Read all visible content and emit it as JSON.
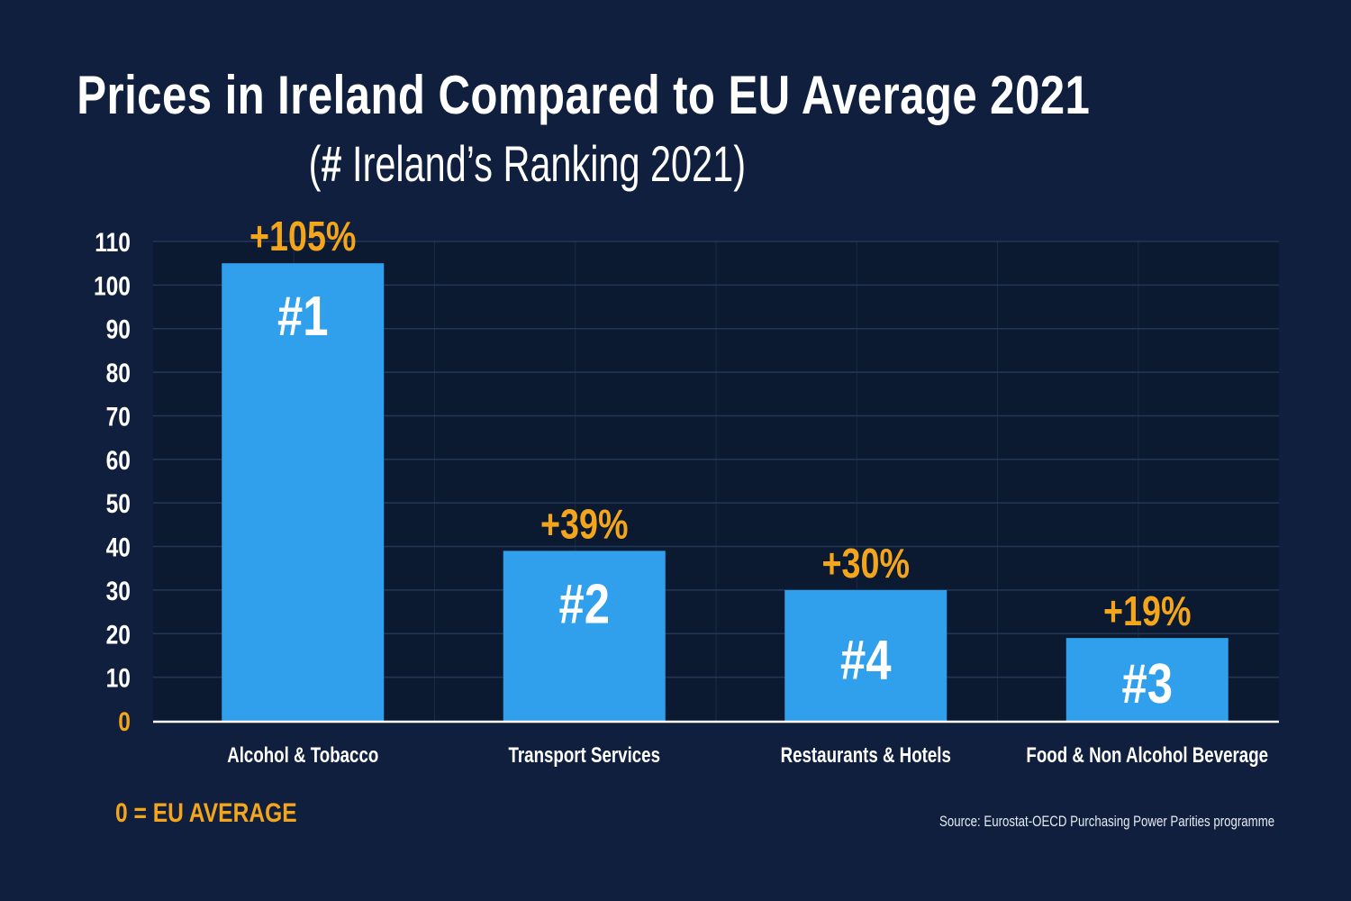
{
  "title": "Prices in Ireland Compared to EU Average 2021",
  "subtitle_open": "(",
  "subtitle_hash": "#",
  "subtitle_rest": " Ireland’s Ranking 2021)",
  "eu_note": "0 = EU AVERAGE",
  "source": "Source: Eurostat-OECD Purchasing Power Parities programme",
  "colors": {
    "background": "#0f1f3d",
    "plot_background": "#0b1a31",
    "bar": "#31a0ec",
    "accent": "#f3a51c",
    "text": "#ffffff"
  },
  "chart_data": {
    "type": "bar",
    "categories": [
      "Alcohol & Tobacco",
      "Transport Services",
      "Restaurants & Hotels",
      "Food & Non Alcohol Beverage"
    ],
    "values": [
      105,
      39,
      30,
      19
    ],
    "value_labels": [
      "+105%",
      "+39%",
      "+30%",
      "+19%"
    ],
    "rank_labels": [
      "#1",
      "#2",
      "#4",
      "#3"
    ],
    "yticks": [
      0,
      10,
      20,
      30,
      40,
      50,
      60,
      70,
      80,
      90,
      100,
      110
    ],
    "ylim": [
      0,
      110
    ],
    "grid": true,
    "legend": "none"
  }
}
